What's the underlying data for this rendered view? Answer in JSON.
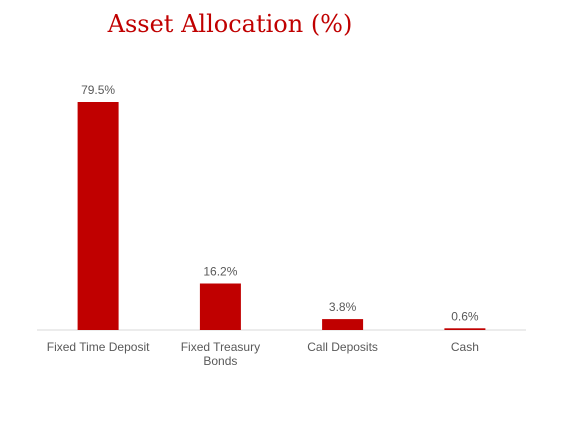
{
  "chart_data": {
    "type": "bar",
    "title": "Asset Allocation (%)",
    "categories": [
      "Fixed Time Deposit",
      "Fixed Treasury Bonds",
      "Call Deposits",
      "Cash"
    ],
    "category_lines": [
      [
        "Fixed Time Deposit"
      ],
      [
        "Fixed Treasury",
        "Bonds"
      ],
      [
        "Call Deposits"
      ],
      [
        "Cash"
      ]
    ],
    "values": [
      79.5,
      16.2,
      3.8,
      0.6
    ],
    "data_labels": [
      "79.5%",
      "16.2%",
      "3.8%",
      "0.6%"
    ],
    "ylim": [
      0,
      79.5
    ],
    "grid": false,
    "legend": "none",
    "bar_color": "#c00000",
    "title_color": "#c00000"
  }
}
